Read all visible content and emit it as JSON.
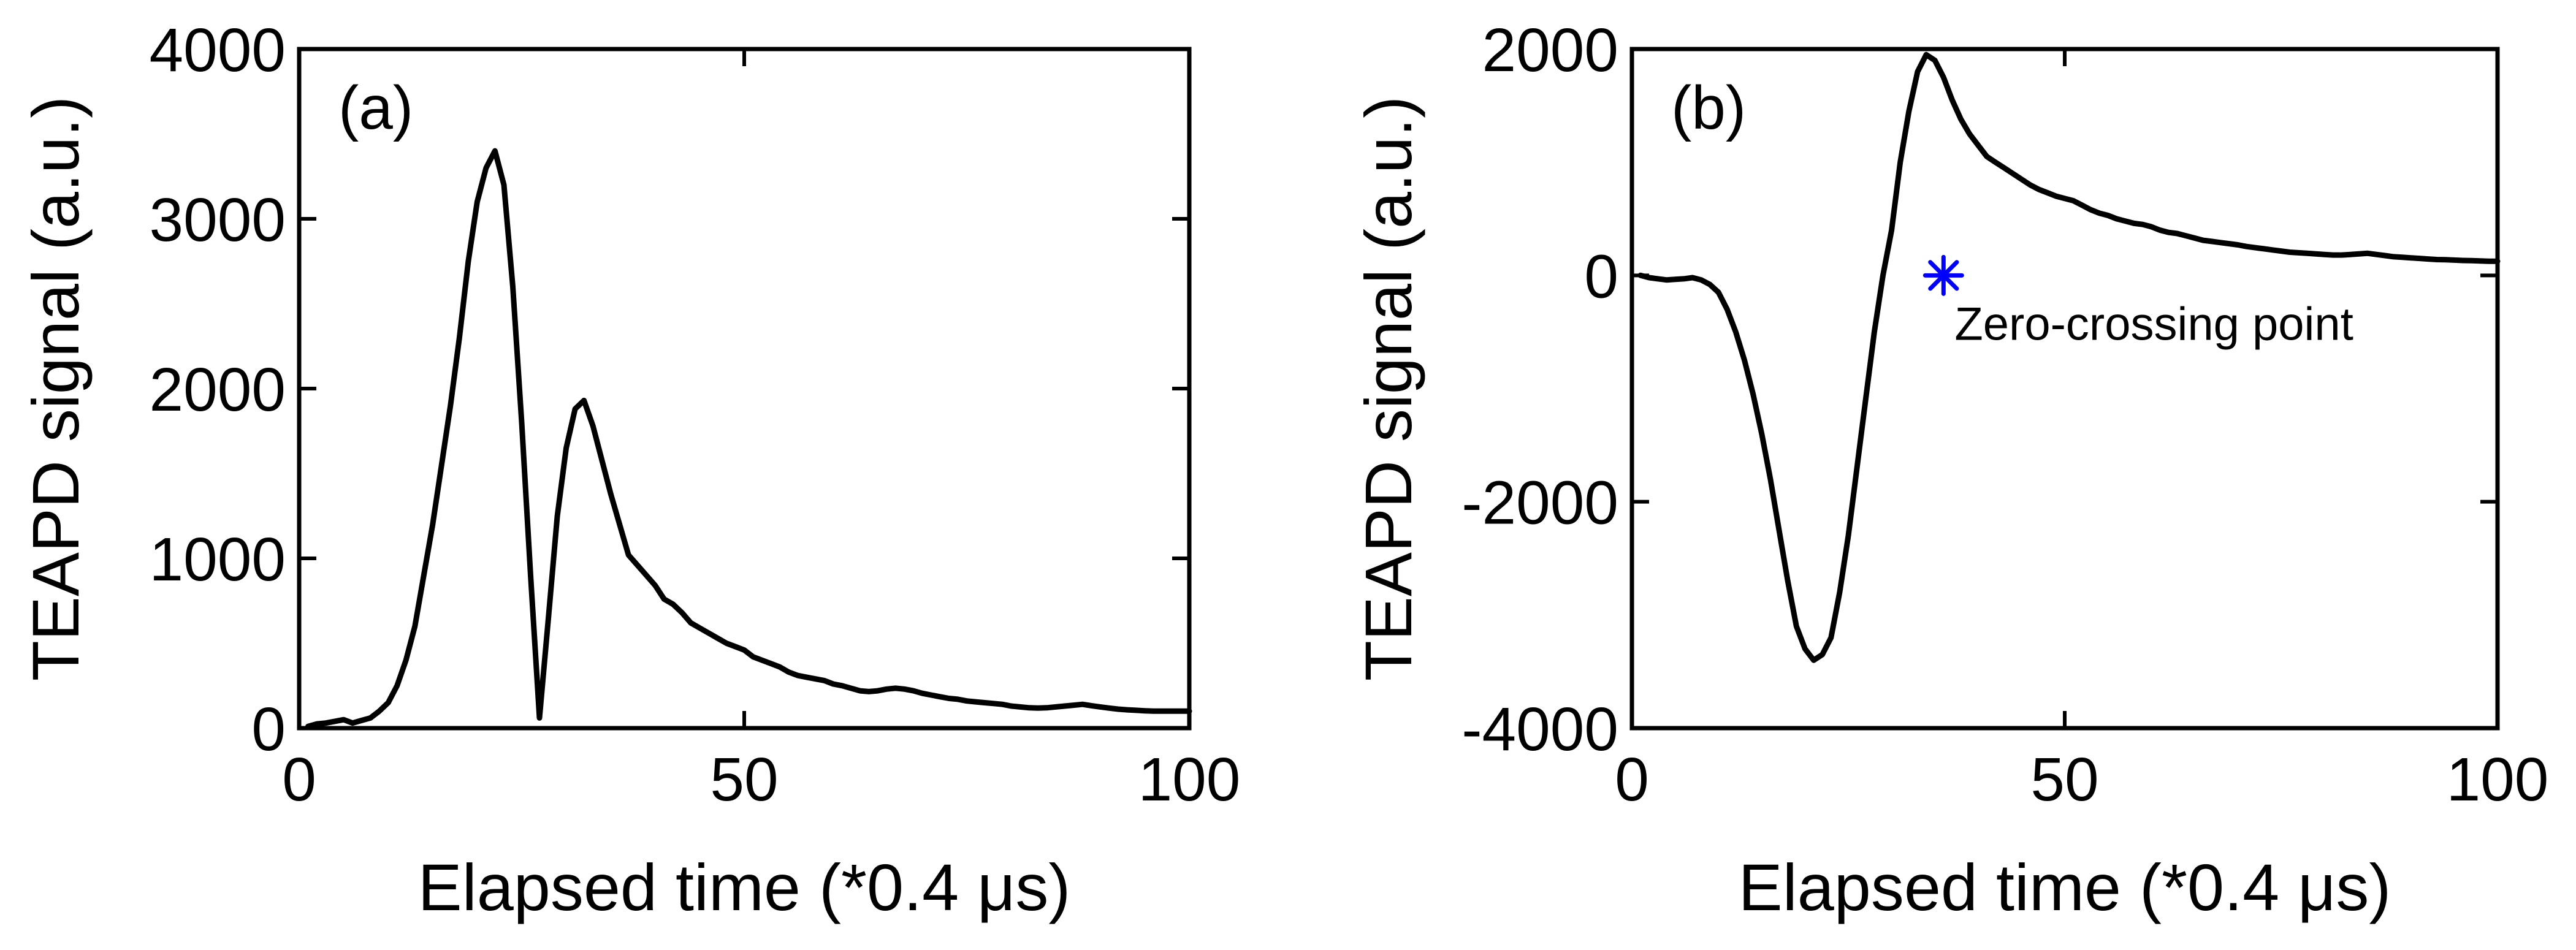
{
  "chart_data": [
    {
      "type": "line",
      "panel_label": "(a)",
      "xlabel": "Elapsed time (*0.4 μs)",
      "ylabel": "TEAPD signal (a.u.)",
      "xlim": [
        0,
        100
      ],
      "ylim": [
        0,
        4000
      ],
      "xticks": [
        0,
        50,
        100
      ],
      "yticks": [
        0,
        1000,
        2000,
        3000,
        4000
      ],
      "xtick_labels": [
        "0",
        "50",
        "100"
      ],
      "ytick_labels": [
        "0",
        "1000",
        "2000",
        "3000",
        "4000"
      ],
      "grid": false,
      "line_color": "#000000",
      "series": [
        {
          "x": [
            1,
            2,
            3,
            4,
            5,
            6,
            7,
            8,
            9,
            10,
            11,
            12,
            13,
            14,
            15,
            16,
            17,
            18,
            19,
            20,
            21,
            22,
            23,
            24,
            25,
            26,
            27,
            28,
            29,
            30,
            31,
            32,
            33,
            34,
            35,
            36,
            37,
            38,
            39,
            40,
            41,
            42,
            43,
            44,
            45,
            46,
            47,
            48,
            49,
            50,
            51,
            52,
            53,
            54,
            55,
            56,
            57,
            58,
            59,
            60,
            61,
            62,
            63,
            64,
            65,
            66,
            67,
            68,
            69,
            70,
            71,
            72,
            73,
            74,
            75,
            76,
            77,
            78,
            79,
            80,
            81,
            82,
            83,
            84,
            85,
            86,
            87,
            88,
            89,
            90,
            91,
            92,
            93,
            94,
            95,
            96,
            97,
            98,
            99,
            100
          ],
          "y": [
            10,
            25,
            30,
            40,
            50,
            30,
            45,
            60,
            100,
            150,
            250,
            400,
            600,
            900,
            1200,
            1550,
            1900,
            2300,
            2750,
            3100,
            3300,
            3400,
            3200,
            2600,
            1800,
            900,
            60,
            650,
            1250,
            1650,
            1880,
            1930,
            1780,
            1580,
            1380,
            1200,
            1020,
            960,
            900,
            840,
            760,
            730,
            680,
            620,
            590,
            560,
            530,
            500,
            480,
            460,
            420,
            400,
            380,
            360,
            330,
            310,
            300,
            290,
            280,
            260,
            250,
            235,
            220,
            215,
            220,
            230,
            235,
            230,
            220,
            205,
            195,
            185,
            175,
            170,
            160,
            155,
            150,
            145,
            140,
            130,
            125,
            120,
            118,
            120,
            125,
            130,
            135,
            140,
            132,
            125,
            118,
            112,
            108,
            105,
            102,
            100,
            100,
            100,
            100,
            100
          ]
        }
      ]
    },
    {
      "type": "line",
      "panel_label": "(b)",
      "xlabel": "Elapsed time (*0.4 μs)",
      "ylabel": "TEAPD signal (a.u.)",
      "xlim": [
        0,
        100
      ],
      "ylim": [
        -4000,
        2000
      ],
      "xticks": [
        0,
        50,
        100
      ],
      "yticks": [
        -4000,
        -2000,
        0,
        2000
      ],
      "xtick_labels": [
        "0",
        "50",
        "100"
      ],
      "ytick_labels": [
        "-4000",
        "-2000",
        "0",
        "2000"
      ],
      "grid": false,
      "line_color": "#000000",
      "series": [
        {
          "x": [
            1,
            2,
            3,
            4,
            5,
            6,
            7,
            8,
            9,
            10,
            11,
            12,
            13,
            14,
            15,
            16,
            17,
            18,
            19,
            20,
            21,
            22,
            23,
            24,
            25,
            26,
            27,
            28,
            29,
            30,
            31,
            32,
            33,
            34,
            35,
            36,
            37,
            38,
            39,
            40,
            41,
            42,
            43,
            44,
            45,
            46,
            47,
            48,
            49,
            50,
            51,
            52,
            53,
            54,
            55,
            56,
            57,
            58,
            59,
            60,
            61,
            62,
            63,
            64,
            65,
            66,
            67,
            68,
            69,
            70,
            71,
            72,
            73,
            74,
            75,
            76,
            77,
            78,
            79,
            80,
            81,
            82,
            83,
            84,
            85,
            86,
            87,
            88,
            89,
            90,
            91,
            92,
            93,
            94,
            95,
            96,
            97,
            98,
            99,
            100
          ],
          "y": [
            0,
            -20,
            -30,
            -40,
            -35,
            -30,
            -20,
            -40,
            -80,
            -150,
            -300,
            -500,
            -750,
            -1050,
            -1400,
            -1800,
            -2250,
            -2700,
            -3100,
            -3300,
            -3400,
            -3350,
            -3200,
            -2800,
            -2300,
            -1700,
            -1100,
            -500,
            0,
            400,
            1000,
            1450,
            1800,
            1950,
            1900,
            1750,
            1550,
            1380,
            1250,
            1150,
            1050,
            1000,
            950,
            900,
            850,
            800,
            760,
            730,
            700,
            680,
            660,
            620,
            580,
            550,
            530,
            500,
            480,
            460,
            450,
            430,
            400,
            380,
            370,
            350,
            330,
            310,
            300,
            290,
            280,
            270,
            255,
            245,
            235,
            225,
            215,
            205,
            200,
            195,
            190,
            185,
            180,
            180,
            185,
            190,
            195,
            185,
            175,
            165,
            160,
            155,
            150,
            145,
            140,
            138,
            135,
            132,
            130,
            128,
            125,
            125
          ]
        }
      ],
      "marker": {
        "x": 36,
        "y": 0,
        "symbol": "asterisk",
        "color": "#0000ff"
      },
      "annotation": {
        "text": "Zero-crossing point",
        "x": 36,
        "y": 0
      }
    }
  ]
}
